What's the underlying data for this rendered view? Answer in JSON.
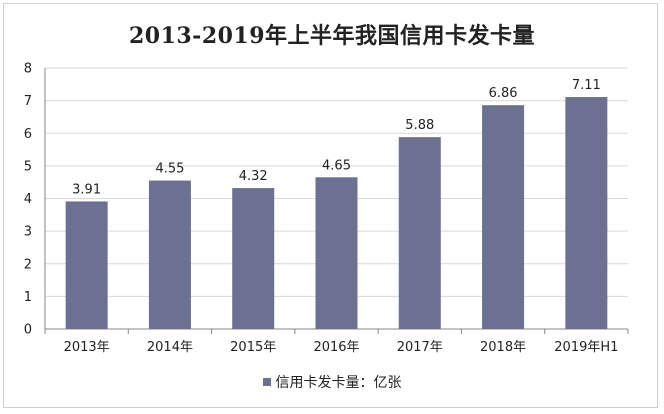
{
  "chart_data": {
    "type": "bar",
    "title": "2013-2019年上半年我国信用卡发卡量",
    "categories": [
      "2013年",
      "2014年",
      "2015年",
      "2016年",
      "2017年",
      "2018年",
      "2019年H1"
    ],
    "series": [
      {
        "name": "信用卡发卡量：亿张",
        "values": [
          3.91,
          4.55,
          4.32,
          4.65,
          5.88,
          6.86,
          7.11
        ]
      }
    ],
    "data_labels": [
      "3.91",
      "4.55",
      "4.32",
      "4.65",
      "5.88",
      "6.86",
      "7.11"
    ],
    "y_ticks": [
      "0",
      "1",
      "2",
      "3",
      "4",
      "5",
      "6",
      "7",
      "8"
    ],
    "ylim": [
      0,
      8
    ],
    "grid": true,
    "legend_position": "bottom",
    "bar_color": "#6c7193"
  }
}
